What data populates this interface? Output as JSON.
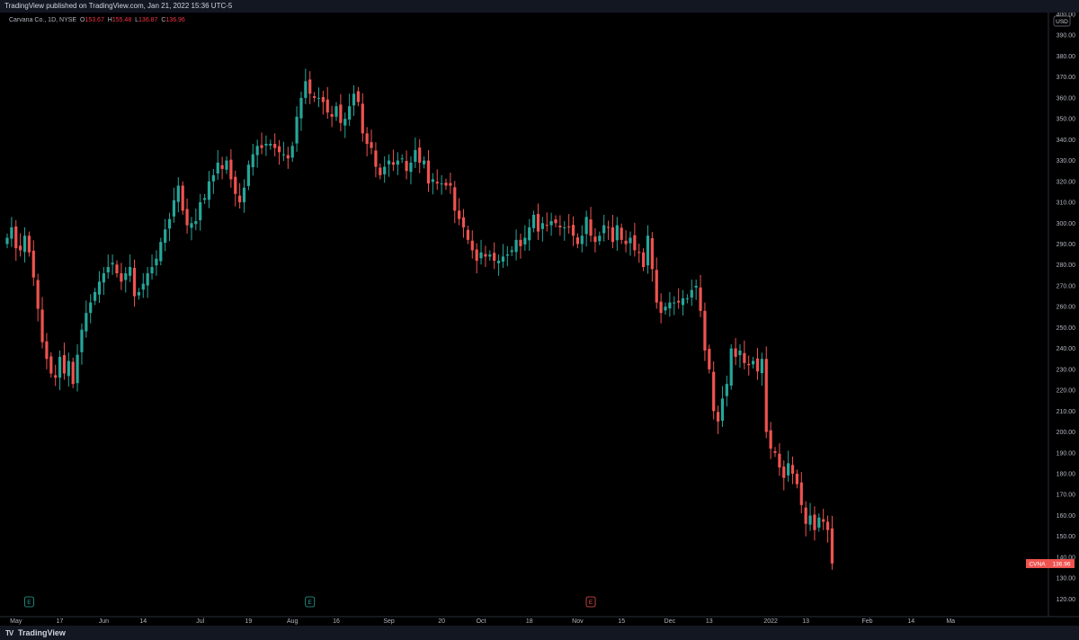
{
  "header": {
    "publish_text": "TradingView published on TradingView.com, Jan 21, 2022 15:36 UTC-5"
  },
  "legend": {
    "symbol": "Carvana Co., 1D, NYSE",
    "o_label": "O",
    "o_value": "153.67",
    "h_label": "H",
    "h_value": "155.48",
    "l_label": "L",
    "l_value": "136.87",
    "c_label": "C",
    "c_value": "136.96"
  },
  "footer": {
    "brand": "TradingView",
    "logo_glyph": "TV"
  },
  "colors": {
    "up": "#26a69a",
    "down": "#ef5350",
    "background": "#000000",
    "axis_text": "#b2b5be"
  },
  "chart_data": {
    "type": "candlestick",
    "ylim": [
      115,
      400
    ],
    "currency_label": "USD",
    "y_ticks": [
      120,
      130,
      140,
      150,
      160,
      170,
      180,
      190,
      200,
      210,
      220,
      230,
      240,
      250,
      260,
      270,
      280,
      290,
      300,
      310,
      320,
      330,
      340,
      350,
      360,
      370,
      380,
      390,
      400
    ],
    "y_tick_labels": [
      "120.00",
      "130.00",
      "140.00",
      "150.00",
      "160.00",
      "170.00",
      "180.00",
      "190.00",
      "200.00",
      "210.00",
      "220.00",
      "230.00",
      "240.00",
      "250.00",
      "260.00",
      "270.00",
      "280.00",
      "290.00",
      "300.00",
      "310.00",
      "320.00",
      "330.00",
      "340.00",
      "350.00",
      "360.00",
      "370.00",
      "380.00",
      "390.00",
      "400.00"
    ],
    "x_labels": [
      {
        "label": "May",
        "i": 2
      },
      {
        "label": "17",
        "i": 12
      },
      {
        "label": "Jun",
        "i": 22
      },
      {
        "label": "14",
        "i": 31
      },
      {
        "label": "Jul",
        "i": 44
      },
      {
        "label": "19",
        "i": 55
      },
      {
        "label": "Aug",
        "i": 65
      },
      {
        "label": "16",
        "i": 75
      },
      {
        "label": "Sep",
        "i": 87
      },
      {
        "label": "20",
        "i": 99
      },
      {
        "label": "Oct",
        "i": 108
      },
      {
        "label": "18",
        "i": 119
      },
      {
        "label": "Nov",
        "i": 130
      },
      {
        "label": "15",
        "i": 140
      },
      {
        "label": "Dec",
        "i": 151
      },
      {
        "label": "13",
        "i": 160
      },
      {
        "label": "2022",
        "i": 174
      },
      {
        "label": "13",
        "i": 182
      },
      {
        "label": "Feb",
        "i": 196
      },
      {
        "label": "14",
        "i": 206
      },
      {
        "label": "Ma",
        "i": 215
      }
    ],
    "last_price": {
      "symbol": "CVNA",
      "value": "136.96",
      "y": 136.96
    },
    "events": [
      {
        "label": "E",
        "i": 5,
        "kind": "earnings-up"
      },
      {
        "label": "E",
        "i": 69,
        "kind": "earnings-up"
      },
      {
        "label": "E",
        "i": 133,
        "kind": "earnings-down"
      }
    ],
    "closes": [
      293,
      298,
      288,
      287,
      294,
      286,
      274,
      259,
      243,
      235,
      228,
      226,
      236,
      228,
      234,
      223,
      237,
      249,
      257,
      262,
      267,
      272,
      276,
      279,
      281,
      276,
      272,
      276,
      279,
      265,
      267,
      271,
      276,
      279,
      283,
      291,
      297,
      302,
      311,
      318,
      306,
      299,
      300,
      301,
      310,
      312,
      320,
      323,
      329,
      326,
      330,
      321,
      314,
      310,
      317,
      328,
      333,
      337,
      336,
      338,
      338,
      336,
      334,
      333,
      331,
      337,
      351,
      360,
      368,
      362,
      360,
      360,
      358,
      353,
      351,
      356,
      348,
      350,
      356,
      362,
      358,
      343,
      338,
      336,
      327,
      323,
      327,
      330,
      328,
      330,
      331,
      325,
      329,
      335,
      329,
      330,
      319,
      321,
      319,
      319,
      318,
      318,
      306,
      302,
      298,
      292,
      287,
      282,
      286,
      284,
      285,
      282,
      282,
      284,
      285,
      287,
      292,
      289,
      293,
      298,
      304,
      296,
      300,
      299,
      301,
      300,
      298,
      298,
      298,
      294,
      290,
      294,
      303,
      294,
      291,
      294,
      299,
      298,
      291,
      299,
      292,
      290,
      293,
      287,
      286,
      279,
      294,
      278,
      262,
      257,
      260,
      262,
      262,
      262,
      264,
      264,
      268,
      270,
      258,
      239,
      230,
      210,
      205,
      216,
      223,
      240,
      236,
      239,
      233,
      232,
      234,
      229,
      235,
      200,
      192,
      190,
      183,
      178,
      185,
      180,
      175,
      165,
      156,
      160,
      153,
      159,
      157,
      153,
      137
    ],
    "title": "",
    "xlabel": "",
    "ylabel": ""
  }
}
